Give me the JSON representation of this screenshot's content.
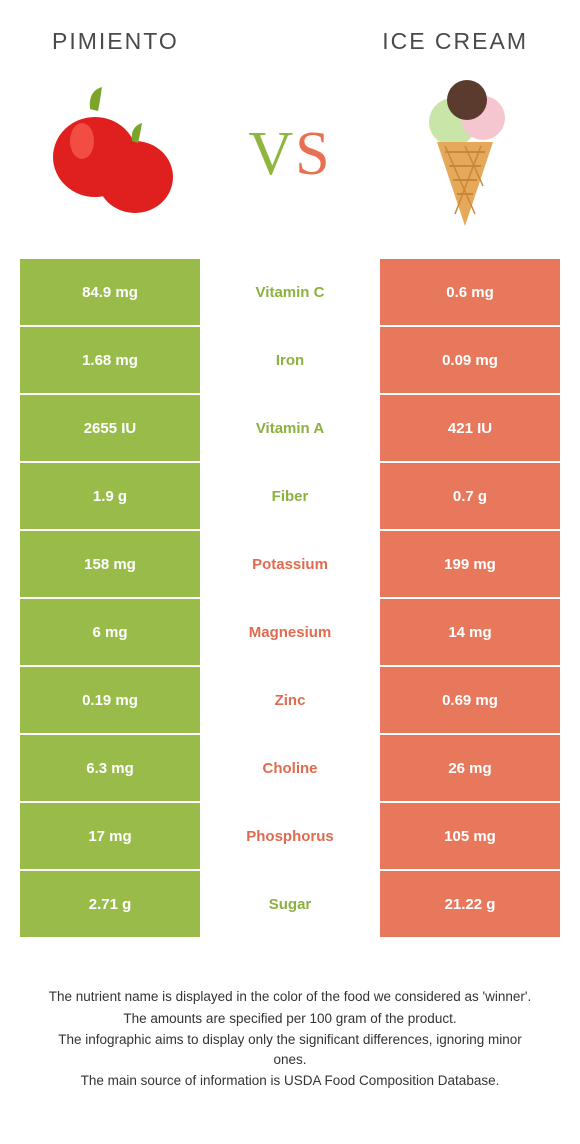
{
  "titles": {
    "left": "PIMIENTO",
    "right": "ICE CREAM"
  },
  "vs": {
    "v": "V",
    "s": "S"
  },
  "colors": {
    "left_bg": "#99bb4a",
    "right_bg": "#e8785c",
    "left_text": "#8bb140",
    "right_text": "#e06b4f",
    "row_border": "#ffffff"
  },
  "illustrations": {
    "pepper": {
      "body": "#e01f1f",
      "highlight": "#ff6a5a",
      "stem": "#7aa52a"
    },
    "icecream": {
      "cone": "#e6a95a",
      "cone_lines": "#c8873c",
      "scoop1": "#c9e5a8",
      "scoop2": "#f5c6cf",
      "scoop3": "#5a3b2e"
    }
  },
  "rows": [
    {
      "nutrient": "Vitamin C",
      "left": "84.9 mg",
      "right": "0.6 mg",
      "winner": "left"
    },
    {
      "nutrient": "Iron",
      "left": "1.68 mg",
      "right": "0.09 mg",
      "winner": "left"
    },
    {
      "nutrient": "Vitamin A",
      "left": "2655 IU",
      "right": "421 IU",
      "winner": "left"
    },
    {
      "nutrient": "Fiber",
      "left": "1.9 g",
      "right": "0.7 g",
      "winner": "left"
    },
    {
      "nutrient": "Potassium",
      "left": "158 mg",
      "right": "199 mg",
      "winner": "right"
    },
    {
      "nutrient": "Magnesium",
      "left": "6 mg",
      "right": "14 mg",
      "winner": "right"
    },
    {
      "nutrient": "Zinc",
      "left": "0.19 mg",
      "right": "0.69 mg",
      "winner": "right"
    },
    {
      "nutrient": "Choline",
      "left": "6.3 mg",
      "right": "26 mg",
      "winner": "right"
    },
    {
      "nutrient": "Phosphorus",
      "left": "17 mg",
      "right": "105 mg",
      "winner": "right"
    },
    {
      "nutrient": "Sugar",
      "left": "2.71 g",
      "right": "21.22 g",
      "winner": "left"
    }
  ],
  "footer": [
    "The nutrient name is displayed in the color of the food we considered as 'winner'.",
    "The amounts are specified per 100 gram of the product.",
    "The infographic aims to display only the significant differences, ignoring minor ones.",
    "The main source of information is USDA Food Composition Database."
  ]
}
